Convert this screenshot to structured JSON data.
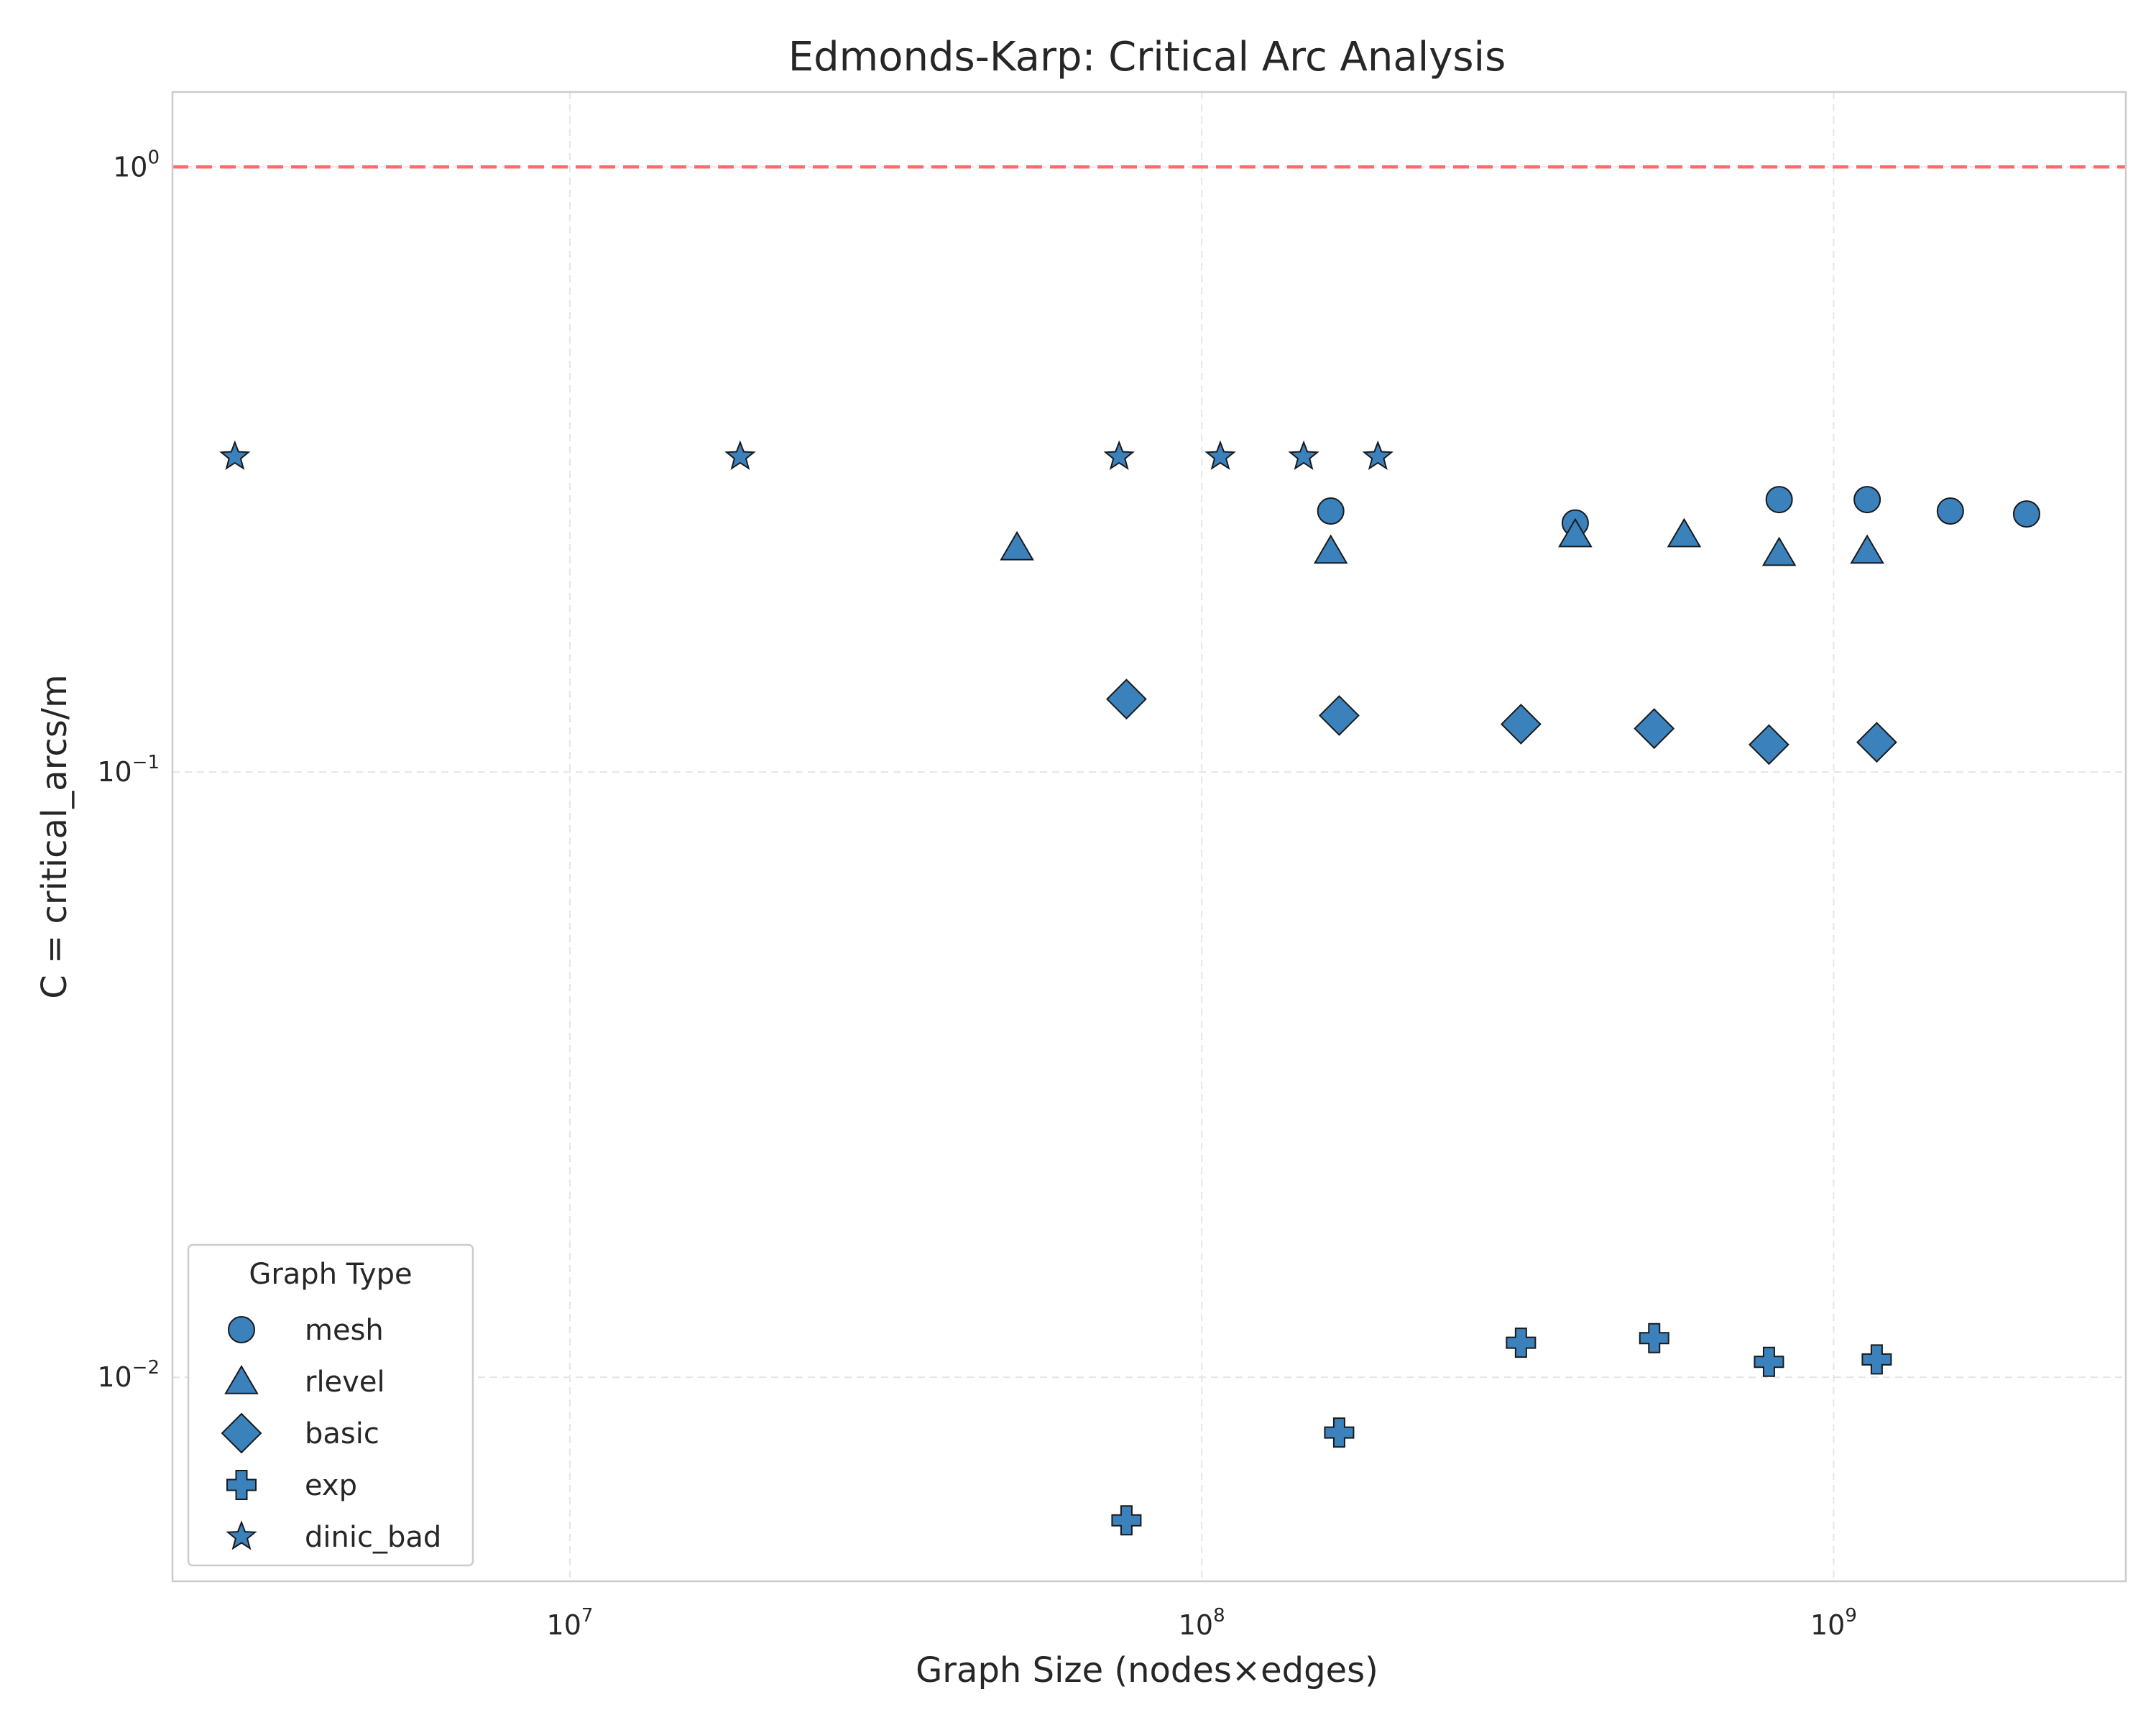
{
  "chart_data": {
    "type": "scatter",
    "title": "Edmonds-Karp: Critical Arc Analysis",
    "xlabel": "Graph Size (nodes×edges)",
    "ylabel": "C = critical_arcs/m",
    "xscale": "log",
    "yscale": "log",
    "xlim": [
      2350000.0,
      2900000000.0
    ],
    "ylim": [
      0.0046,
      1.33
    ],
    "x_ticks": [
      {
        "base": "10",
        "exp": "7",
        "value": 10000000.0
      },
      {
        "base": "10",
        "exp": "8",
        "value": 100000000.0
      },
      {
        "base": "10",
        "exp": "9",
        "value": 1000000000.0
      }
    ],
    "y_ticks": [
      {
        "base": "10",
        "exp": "0",
        "value": 1
      },
      {
        "base": "10",
        "exp": "−1",
        "value": 0.1
      },
      {
        "base": "10",
        "exp": "−2",
        "value": 0.01
      }
    ],
    "grid": true,
    "reference_line": {
      "y": 1.0,
      "style": "dashed",
      "color": "#ff6b6b"
    },
    "marker_color": "#3b82bd",
    "legend": {
      "title": "Graph Type",
      "placement": "lower-left"
    },
    "series": [
      {
        "name": "mesh",
        "marker": "circle",
        "points": [
          [
            160000000.0,
            0.27
          ],
          [
            390000000.0,
            0.258
          ],
          [
            820000000.0,
            0.282
          ],
          [
            1130000000.0,
            0.282
          ],
          [
            1530000000.0,
            0.27
          ],
          [
            2020000000.0,
            0.267
          ]
        ]
      },
      {
        "name": "rlevel",
        "marker": "triangle",
        "points": [
          [
            51000000.0,
            0.235
          ],
          [
            160000000.0,
            0.232
          ],
          [
            390000000.0,
            0.247
          ],
          [
            580000000.0,
            0.247
          ],
          [
            820000000.0,
            0.23
          ],
          [
            1130000000.0,
            0.232
          ]
        ]
      },
      {
        "name": "basic",
        "marker": "diamond",
        "points": [
          [
            76000000.0,
            0.132
          ],
          [
            165000000.0,
            0.124
          ],
          [
            320000000.0,
            0.12
          ],
          [
            520000000.0,
            0.118
          ],
          [
            790000000.0,
            0.111
          ],
          [
            1170000000.0,
            0.112
          ]
        ]
      },
      {
        "name": "exp",
        "marker": "plus",
        "points": [
          [
            76000000.0,
            0.0058
          ],
          [
            165000000.0,
            0.0081
          ],
          [
            320000000.0,
            0.0114
          ],
          [
            520000000.0,
            0.0116
          ],
          [
            790000000.0,
            0.0106
          ],
          [
            1170000000.0,
            0.0107
          ]
        ]
      },
      {
        "name": "dinic_bad",
        "marker": "star",
        "points": [
          [
            2950000.0,
            0.332
          ],
          [
            18600000.0,
            0.332
          ],
          [
            74000000.0,
            0.332
          ],
          [
            107000000.0,
            0.332
          ],
          [
            145000000.0,
            0.332
          ],
          [
            190000000.0,
            0.332
          ]
        ]
      }
    ]
  }
}
